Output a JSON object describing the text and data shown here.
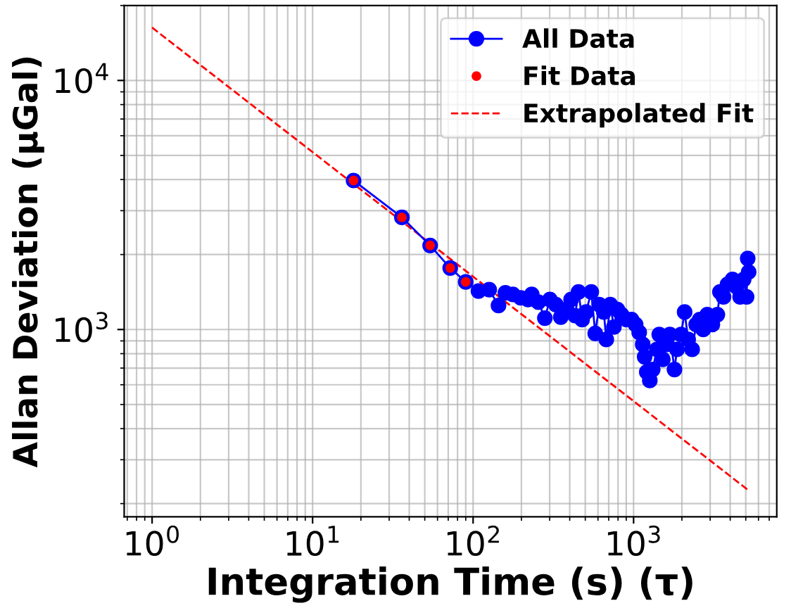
{
  "chart_data": {
    "type": "line",
    "xlabel": "Integration Time (s) (τ)",
    "ylabel": "Allan Deviation (μGal)",
    "log": "xy",
    "grid": true,
    "legend": "top right",
    "xlim": [
      0.67,
      7800
    ],
    "ylim": [
      177,
      20000
    ],
    "xticks": [
      {
        "value": 1,
        "label": "10$^{0}$"
      },
      {
        "value": 10,
        "label": "10$^{1}$"
      },
      {
        "value": 100,
        "label": "10$^{2}$"
      },
      {
        "value": 1000,
        "label": "10$^{3}$"
      }
    ],
    "yticks": [
      {
        "value": 1000,
        "label": "10$^{3}$"
      },
      {
        "value": 10000,
        "label": "10$^{4}$"
      }
    ],
    "series": [
      {
        "name": "All Data",
        "color": "#0000ff",
        "marker": "circle",
        "line_style": "solid",
        "x": [
          18,
          36,
          54,
          72,
          90,
          108,
          126,
          144,
          159,
          177,
          198,
          220,
          232,
          255,
          280,
          301,
          328,
          352,
          379,
          408,
          432,
          454,
          478,
          506,
          545,
          577,
          611,
          652,
          676,
          716,
          754,
          793,
          841,
          904,
          971,
          1030,
          1084,
          1140,
          1172,
          1208,
          1262,
          1316,
          1396,
          1445,
          1521,
          1613,
          1683,
          1798,
          1864,
          1976,
          2080,
          2188,
          2317,
          2455,
          2582,
          2716,
          2877,
          3096,
          3327,
          3452,
          3631,
          3847,
          4133,
          4385,
          4613,
          4853,
          5059,
          5140,
          5212
        ],
        "values": [
          3965,
          2820,
          2175,
          1766,
          1552,
          1427,
          1445,
          1248,
          1403,
          1384,
          1340,
          1320,
          1384,
          1288,
          1111,
          1320,
          1259,
          1122,
          1203,
          1320,
          1137,
          1416,
          1096,
          1175,
          1416,
          964,
          1259,
          1175,
          912,
          1259,
          1023,
          1203,
          1148,
          1096,
          1096,
          1047,
          973,
          871,
          776,
          675,
          624,
          691,
          832,
          955,
          759,
          871,
          955,
          691,
          832,
          955,
          1175,
          912,
          832,
          1047,
          1096,
          1000,
          1148,
          1047,
          1148,
          1416,
          1352,
          1517,
          1589,
          1483,
          1352,
          1589,
          1352,
          1928,
          1702
        ]
      },
      {
        "name": "Fit Data",
        "type": "scatter",
        "color": "#ff0000",
        "marker": "circle",
        "x": [
          18,
          36,
          54,
          72,
          90
        ],
        "values": [
          3965,
          2820,
          2175,
          1766,
          1552
        ]
      },
      {
        "name": "Extrapolated Fit",
        "type": "line",
        "color": "#ff0000",
        "marker": "none",
        "line_style": "dashed",
        "x": [
          1,
          5250
        ],
        "values": [
          16300,
          225
        ]
      }
    ]
  }
}
